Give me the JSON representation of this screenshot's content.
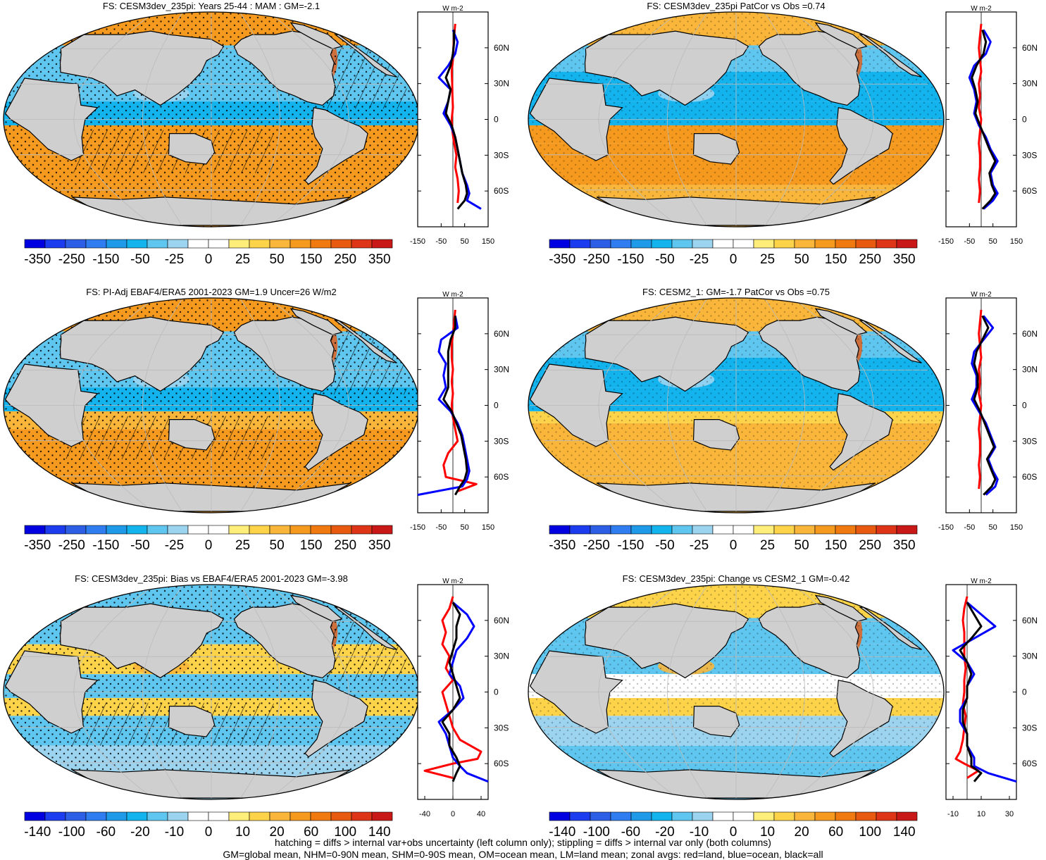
{
  "colors": {
    "land": "#cfcfcf",
    "coast": "#000000",
    "zonal_land": "#ff0000",
    "zonal_ocean": "#0000ff",
    "zonal_all": "#000000",
    "palette": [
      "#0000e0",
      "#1c3cf0",
      "#2d5fe6",
      "#2f7df0",
      "#1e9ae8",
      "#13b3ee",
      "#5fc6ef",
      "#9cd4f0",
      "#ffffff",
      "#ffffff",
      "#ffee7a",
      "#fdd34a",
      "#f9b63a",
      "#f59a1e",
      "#f07a10",
      "#e85a10",
      "#de3418",
      "#c81818"
    ]
  },
  "chart_data": [
    {
      "type": "heatmap",
      "title": "FS: CESM3dev_235pi: Years 25-44 : MAM : GM=-2.1",
      "colorbar_labels": [
        "-350",
        "-250",
        "-150",
        "-50",
        "-25",
        "0",
        "25",
        "50",
        "150",
        "250",
        "350"
      ],
      "zonal": {
        "unit": "W m-2",
        "xlim": [
          -150,
          150
        ],
        "xticks": [
          "-150",
          "-50",
          "50",
          "150"
        ],
        "lat_labels": [
          "60N",
          "30N",
          "0",
          "30S",
          "60S"
        ],
        "land_lat": [
          80,
          70,
          60,
          50,
          40,
          30,
          20,
          10,
          0,
          -10,
          -20,
          -30,
          -40,
          -50,
          -60,
          -70
        ],
        "land": [
          10,
          5,
          2,
          0,
          -5,
          -3,
          -2,
          0,
          -5,
          -2,
          5,
          15,
          10,
          20,
          25,
          20
        ],
        "ocean_lat": [
          75,
          65,
          55,
          45,
          35,
          25,
          15,
          5,
          -5,
          -15,
          -25,
          -35,
          -45,
          -55,
          -62,
          -68,
          -75
        ],
        "ocean": [
          0,
          20,
          10,
          -20,
          -60,
          -10,
          -20,
          -40,
          -10,
          10,
          20,
          30,
          40,
          60,
          70,
          60,
          120
        ],
        "all_lat": [
          75,
          65,
          55,
          45,
          35,
          25,
          15,
          5,
          -5,
          -15,
          -25,
          -35,
          -45,
          -55,
          -62,
          -68,
          -75
        ],
        "all": [
          5,
          5,
          0,
          -10,
          -30,
          -10,
          -20,
          -30,
          -5,
          10,
          20,
          30,
          40,
          55,
          60,
          50,
          20
        ]
      }
    },
    {
      "type": "heatmap",
      "title": "FS: CESM3dev_235pi PatCor vs Obs =0.74",
      "colorbar_labels": [
        "-350",
        "-250",
        "-150",
        "-50",
        "-25",
        "0",
        "25",
        "50",
        "150",
        "250",
        "350"
      ],
      "zonal": {
        "unit": "W m-2",
        "xlim": [
          -150,
          150
        ],
        "xticks": [
          "-150",
          "-50",
          "50",
          "150"
        ],
        "lat_labels": [
          "60N",
          "30N",
          "0",
          "30S",
          "60S"
        ],
        "land_lat": [
          80,
          70,
          60,
          50,
          40,
          30,
          20,
          10,
          0,
          -10,
          -20,
          -30,
          -40,
          -50,
          -60,
          -70
        ],
        "land": [
          0,
          -5,
          -10,
          -5,
          0,
          -10,
          -5,
          -10,
          0,
          -5,
          -10,
          -5,
          -5,
          -10,
          -5,
          -10
        ],
        "ocean_lat": [
          75,
          65,
          55,
          45,
          35,
          25,
          15,
          5,
          -5,
          -15,
          -25,
          -35,
          -45,
          -55,
          -62,
          -68,
          -75
        ],
        "ocean": [
          10,
          40,
          20,
          -30,
          -50,
          -30,
          -20,
          -30,
          -10,
          20,
          40,
          70,
          40,
          50,
          70,
          50,
          10
        ],
        "all_lat": [
          75,
          65,
          55,
          45,
          35,
          25,
          15,
          5,
          -5,
          -15,
          -25,
          -35,
          -45,
          -55,
          -62,
          -68,
          -75
        ],
        "all": [
          5,
          20,
          10,
          -20,
          -40,
          -25,
          -15,
          -25,
          -5,
          15,
          35,
          60,
          35,
          45,
          60,
          40,
          5
        ]
      }
    },
    {
      "type": "heatmap",
      "title": "FS: PI-Adj EBAF4/ERA5 2001-2023 GM=1.9 Uncer=26 W/m2",
      "colorbar_labels": [
        "-350",
        "-250",
        "-150",
        "-50",
        "-25",
        "0",
        "25",
        "50",
        "150",
        "250",
        "350"
      ],
      "zonal": {
        "unit": "W m-2",
        "xlim": [
          -150,
          150
        ],
        "xticks": [
          "-150",
          "-50",
          "50",
          "150"
        ],
        "lat_labels": [
          "60N",
          "30N",
          "0",
          "30S",
          "60S"
        ],
        "land_lat": [
          80,
          70,
          60,
          50,
          40,
          30,
          20,
          10,
          0,
          -10,
          -20,
          -30,
          -40,
          -50,
          -60,
          -66,
          -72
        ],
        "land": [
          10,
          5,
          0,
          -5,
          -5,
          0,
          -5,
          0,
          -5,
          0,
          10,
          20,
          -20,
          -40,
          -30,
          100,
          20
        ],
        "ocean_lat": [
          75,
          65,
          55,
          45,
          35,
          25,
          15,
          5,
          -5,
          -15,
          -25,
          -35,
          -45,
          -55,
          -62,
          -68,
          -75
        ],
        "ocean": [
          10,
          20,
          -50,
          -60,
          -30,
          -40,
          -30,
          -60,
          -10,
          20,
          40,
          50,
          60,
          70,
          60,
          40,
          -150
        ],
        "all_lat": [
          75,
          65,
          55,
          45,
          35,
          25,
          15,
          5,
          -5,
          -15,
          -25,
          -35,
          -45,
          -55,
          -62,
          -68,
          -75
        ],
        "all": [
          10,
          10,
          -10,
          -20,
          -20,
          -20,
          -20,
          -40,
          -5,
          15,
          35,
          45,
          55,
          60,
          50,
          30,
          10
        ]
      }
    },
    {
      "type": "heatmap",
      "title": "FS: CESM2_1: GM=-1.7 PatCor vs Obs =0.75",
      "colorbar_labels": [
        "-350",
        "-250",
        "-150",
        "-50",
        "-25",
        "0",
        "25",
        "50",
        "150",
        "250",
        "350"
      ],
      "zonal": {
        "unit": "W m-2",
        "xlim": [
          -150,
          150
        ],
        "xticks": [
          "-150",
          "-50",
          "50",
          "150"
        ],
        "lat_labels": [
          "60N",
          "30N",
          "0",
          "30S",
          "60S"
        ],
        "land_lat": [
          80,
          70,
          60,
          50,
          40,
          30,
          20,
          10,
          0,
          -10,
          -20,
          -30,
          -40,
          -50,
          -60,
          -70
        ],
        "land": [
          0,
          -5,
          -10,
          -5,
          0,
          -10,
          -5,
          -10,
          0,
          -5,
          -10,
          -5,
          -5,
          -10,
          -5,
          -10
        ],
        "ocean_lat": [
          75,
          65,
          55,
          45,
          35,
          25,
          15,
          5,
          -5,
          -15,
          -25,
          -35,
          -45,
          -55,
          -62,
          -68,
          -75
        ],
        "ocean": [
          10,
          50,
          10,
          -30,
          -40,
          -20,
          -20,
          -40,
          -10,
          20,
          40,
          60,
          30,
          50,
          70,
          60,
          20
        ],
        "all_lat": [
          75,
          65,
          55,
          45,
          35,
          25,
          15,
          5,
          -5,
          -15,
          -25,
          -35,
          -45,
          -55,
          -62,
          -68,
          -75
        ],
        "all": [
          5,
          30,
          5,
          -20,
          -30,
          -15,
          -15,
          -30,
          -5,
          15,
          35,
          55,
          25,
          45,
          60,
          45,
          10
        ]
      }
    },
    {
      "type": "heatmap",
      "title": "FS: CESM3dev_235pi: Bias vs EBAF4/ERA5 2001-2023 GM=-3.98",
      "colorbar_labels": [
        "-140",
        "-100",
        "-60",
        "-20",
        "-10",
        "0",
        "10",
        "20",
        "60",
        "100",
        "140"
      ],
      "zonal": {
        "unit": "W m-2",
        "xlim": [
          -50,
          50
        ],
        "xticks": [
          "-40",
          "0",
          "40"
        ],
        "lat_labels": [
          "60N",
          "30N",
          "0",
          "30S",
          "60S"
        ],
        "land_lat": [
          80,
          70,
          60,
          50,
          40,
          30,
          20,
          10,
          0,
          -10,
          -20,
          -30,
          -40,
          -50,
          -56,
          -60,
          -66,
          -72
        ],
        "land": [
          0,
          -5,
          -15,
          -10,
          -15,
          -5,
          -10,
          0,
          -15,
          -10,
          -5,
          0,
          10,
          40,
          35,
          0,
          -40,
          0
        ],
        "ocean_lat": [
          75,
          65,
          55,
          45,
          35,
          25,
          15,
          5,
          -5,
          -15,
          -25,
          -35,
          -45,
          -55,
          -62,
          -68,
          -75
        ],
        "ocean": [
          0,
          20,
          30,
          20,
          5,
          0,
          -5,
          10,
          15,
          0,
          -20,
          -10,
          -5,
          0,
          10,
          20,
          50
        ],
        "all_lat": [
          75,
          65,
          55,
          45,
          35,
          25,
          15,
          5,
          -5,
          -15,
          -25,
          -35,
          -45,
          -55,
          -62,
          -68,
          -75
        ],
        "all": [
          0,
          10,
          5,
          5,
          0,
          -5,
          0,
          5,
          10,
          0,
          -15,
          -5,
          -5,
          5,
          10,
          5,
          0
        ]
      }
    },
    {
      "type": "heatmap",
      "title": "FS: CESM3dev_235pi: Change vs CESM2_1 GM=-0.42",
      "colorbar_labels": [
        "-140",
        "-100",
        "-60",
        "-20",
        "-10",
        "0",
        "10",
        "20",
        "60",
        "100",
        "140"
      ],
      "zonal": {
        "unit": "W m-2",
        "xlim": [
          -15,
          35
        ],
        "xticks": [
          "-10",
          "10",
          "30"
        ],
        "lat_labels": [
          "60N",
          "30N",
          "0",
          "30S",
          "60S"
        ],
        "land_lat": [
          80,
          70,
          60,
          50,
          40,
          30,
          20,
          10,
          0,
          -10,
          -20,
          -30,
          -40,
          -50,
          -56,
          -60,
          -66,
          -72
        ],
        "land": [
          0,
          -2,
          -3,
          -2,
          -2,
          -2,
          -1,
          -2,
          -2,
          -3,
          -1,
          -2,
          -3,
          -5,
          -8,
          -2,
          8,
          0
        ],
        "ocean_lat": [
          75,
          65,
          55,
          45,
          35,
          25,
          15,
          5,
          -5,
          -15,
          -25,
          -35,
          -45,
          -55,
          -62,
          -68,
          -75
        ],
        "ocean": [
          0,
          10,
          20,
          5,
          -10,
          0,
          5,
          0,
          0,
          -5,
          -5,
          0,
          0,
          5,
          5,
          15,
          40
        ],
        "all_lat": [
          75,
          65,
          55,
          45,
          35,
          25,
          15,
          5,
          -5,
          -15,
          -25,
          -35,
          -45,
          -55,
          -62,
          -68,
          -75
        ],
        "all": [
          0,
          5,
          10,
          3,
          -5,
          0,
          3,
          0,
          0,
          -3,
          -3,
          0,
          0,
          3,
          3,
          10,
          5
        ]
      }
    }
  ],
  "footer": {
    "line1": "hatching = diffs > internal var+obs uncertainty (left column only); stippling = diffs > internal var only (both columns)",
    "line2": "GM=global mean, NHM=0-90N mean, SHM=0-90S mean, OM=ocean mean, LM=land mean; zonal avgs: red=land, blue=ocean, black=all"
  }
}
